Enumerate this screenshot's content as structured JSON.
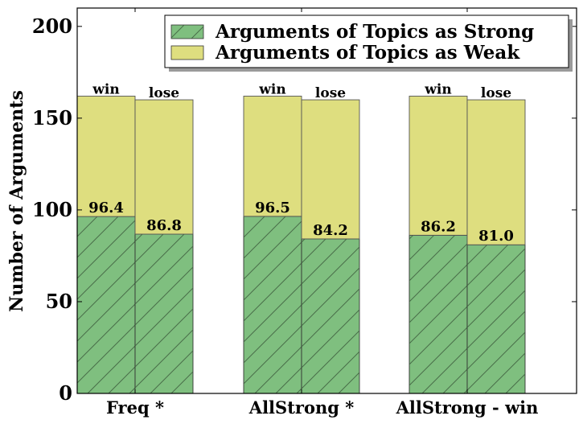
{
  "chart_data": {
    "type": "bar",
    "stacked": true,
    "title": "",
    "xlabel": "",
    "ylabel": "Number of Arguments",
    "ylim": [
      0,
      210
    ],
    "yticks": [
      0,
      50,
      100,
      150,
      200
    ],
    "grid": false,
    "legend_position": "top-right",
    "categories": [
      "Freq *",
      "AllStrong *",
      "AllStrong - win"
    ],
    "bar_tags": [
      "win",
      "lose"
    ],
    "series": [
      {
        "name": "Arguments of Topics as Strong",
        "color": "#7fbf7f",
        "hatch": "diagonal",
        "values": [
          [
            96.4,
            86.8
          ],
          [
            96.5,
            84.2
          ],
          [
            86.2,
            81.0
          ]
        ],
        "labels": [
          [
            "96.4",
            "86.8"
          ],
          [
            "96.5",
            "84.2"
          ],
          [
            "86.2",
            "81.0"
          ]
        ]
      },
      {
        "name": "Arguments of Topics as Weak",
        "color": "#dede7f",
        "hatch": "none",
        "values": [
          [
            65.6,
            73.2
          ],
          [
            65.5,
            75.8
          ],
          [
            75.8,
            79.0
          ]
        ]
      }
    ]
  }
}
